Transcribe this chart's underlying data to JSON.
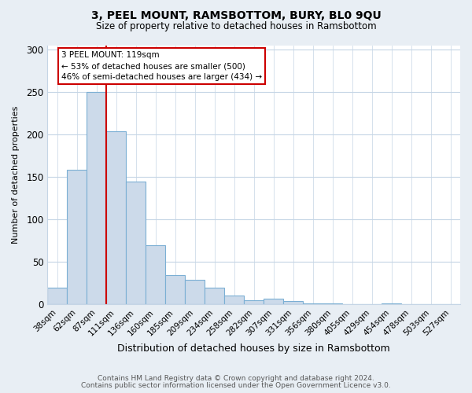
{
  "title": "3, PEEL MOUNT, RAMSBOTTOM, BURY, BL0 9QU",
  "subtitle": "Size of property relative to detached houses in Ramsbottom",
  "xlabel": "Distribution of detached houses by size in Ramsbottom",
  "ylabel": "Number of detached properties",
  "bar_labels": [
    "38sqm",
    "62sqm",
    "87sqm",
    "111sqm",
    "136sqm",
    "160sqm",
    "185sqm",
    "209sqm",
    "234sqm",
    "258sqm",
    "282sqm",
    "307sqm",
    "331sqm",
    "356sqm",
    "380sqm",
    "405sqm",
    "429sqm",
    "454sqm",
    "478sqm",
    "503sqm",
    "527sqm"
  ],
  "bar_values": [
    19,
    158,
    250,
    204,
    144,
    69,
    34,
    29,
    19,
    10,
    5,
    6,
    4,
    1,
    1,
    0,
    0,
    1,
    0,
    0,
    0
  ],
  "bar_color": "#ccdaea",
  "bar_edge_color": "#7bafd4",
  "vline_x_index": 3,
  "vline_color": "#cc0000",
  "annotation_title": "3 PEEL MOUNT: 119sqm",
  "annotation_line2": "← 53% of detached houses are smaller (500)",
  "annotation_line3": "46% of semi-detached houses are larger (434) →",
  "annotation_box_edge": "#cc0000",
  "annotation_box_bg": "white",
  "ylim": [
    0,
    305
  ],
  "yticks": [
    0,
    50,
    100,
    150,
    200,
    250,
    300
  ],
  "footer_line1": "Contains HM Land Registry data © Crown copyright and database right 2024.",
  "footer_line2": "Contains public sector information licensed under the Open Government Licence v3.0.",
  "fig_bg_color": "#e8eef4",
  "plot_bg_color": "white",
  "grid_color": "#c5d5e5"
}
